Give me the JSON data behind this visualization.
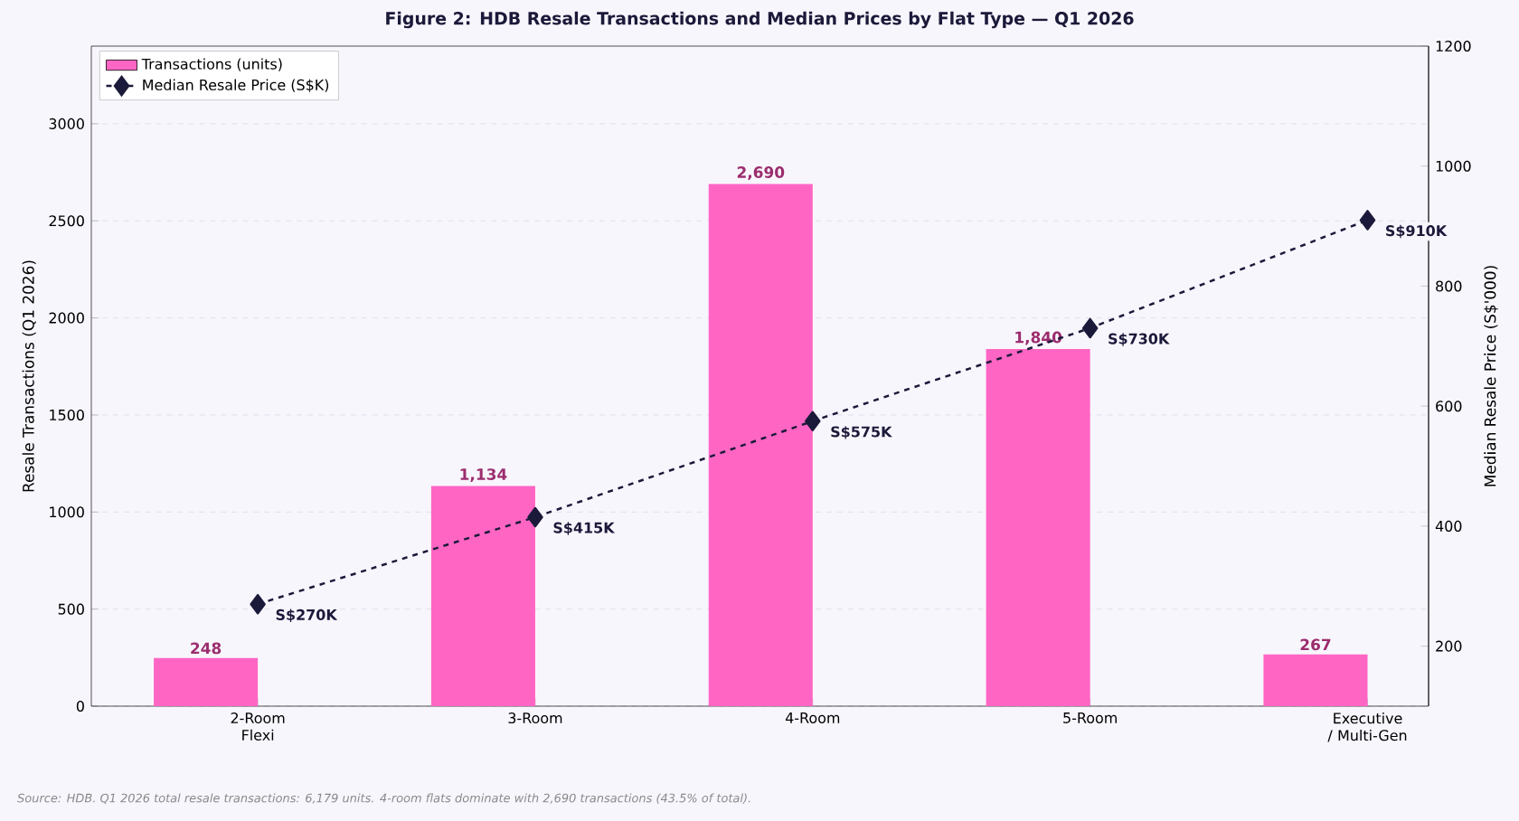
{
  "chart_data": {
    "type": "bar",
    "title": "Figure 2: HDB Resale Transactions and Median Prices by Flat Type — Q1 2026",
    "ylabel": "Resale Transactions (Q1 2026)",
    "y2label": "Median Resale Price (S$'000)",
    "categories": [
      "2-Room Flexi",
      "3-Room",
      "4-Room",
      "5-Room",
      "Executive / Multi-Gen"
    ],
    "ylim": [
      0,
      3400
    ],
    "yticks": [
      0,
      500,
      1000,
      1500,
      2000,
      2500,
      3000
    ],
    "y2lim": [
      100,
      1200
    ],
    "y2ticks": [
      200,
      400,
      600,
      800,
      1000,
      1200
    ],
    "grid": "y",
    "legend": "top left",
    "series": [
      {
        "name": "Transactions (units)",
        "color": "#ff66c4",
        "values": [
          248,
          1134,
          2690,
          1840,
          267
        ],
        "value_labels": [
          "248",
          "1,134",
          "2,690",
          "1,840",
          "267"
        ]
      },
      {
        "name": "Median Resale Price (S$K)",
        "type": "line",
        "axis": "y2",
        "color": "#1c1a3a",
        "marker": "diamond",
        "line_style": "dashed",
        "values": [
          270,
          415,
          575,
          730,
          910
        ],
        "value_labels": [
          "S$270K",
          "S$415K",
          "S$575K",
          "S$730K",
          "S$910K"
        ]
      }
    ],
    "annotations": [
      "Source: HDB. Q1 2026 total resale transactions: 6,179 units. 4-room flats dominate with 2,690 transactions (43.5% of total)."
    ]
  }
}
